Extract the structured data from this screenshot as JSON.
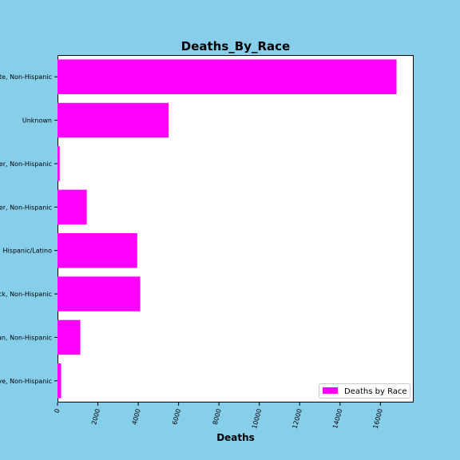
{
  "chart_data": {
    "type": "bar",
    "orientation": "horizontal",
    "title": "Deaths_By_Race",
    "xlabel": "Deaths",
    "ylabel": "",
    "categories": [
      "White, Non-Hispanic",
      "Unknown",
      "Other, Non-Hispanic",
      "Native Hawaiian/Other Pacific Islander, Non-Hispanic",
      "Hispanic/Latino",
      "Black, Non-Hispanic",
      "Asian, Non-Hispanic",
      "American Indian/Alaska Native, Non-Hispanic"
    ],
    "series": [
      {
        "name": "Deaths by Race",
        "color": "#FF00FF",
        "values": [
          16800,
          5500,
          110,
          1450,
          3950,
          4100,
          1130,
          180
        ]
      }
    ],
    "xlim": [
      0,
      17650
    ],
    "xticks": [
      0,
      2000,
      4000,
      6000,
      8000,
      10000,
      12000,
      14000,
      16000
    ],
    "grid": false,
    "legend_position": "lower right"
  },
  "colors": {
    "background": "#87CEEB",
    "plot_background": "#FFFFFF",
    "bar": "#FF00FF"
  }
}
